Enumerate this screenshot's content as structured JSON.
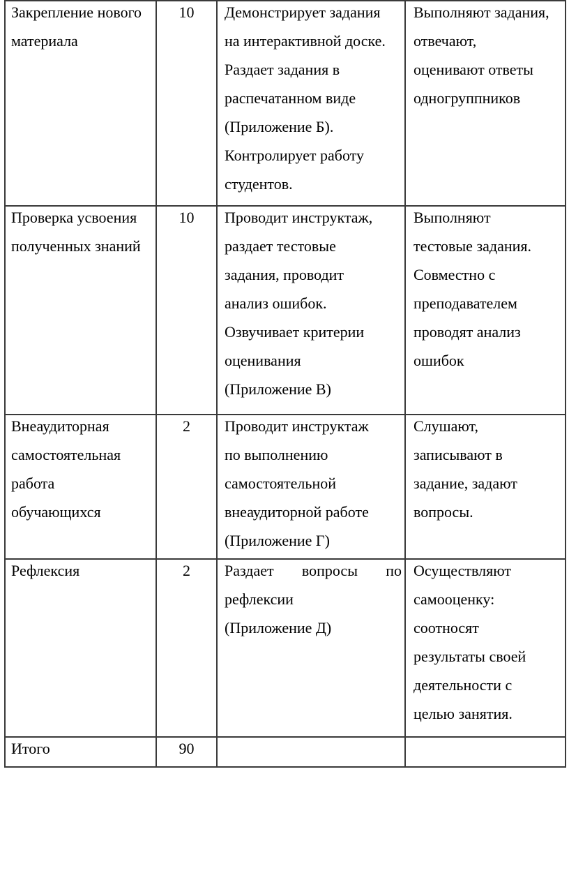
{
  "colors": {
    "border": "#3a3a3a",
    "text": "#000000",
    "background": "#ffffff"
  },
  "table": {
    "rows": [
      {
        "stage": [
          "Закрепление нового",
          "материала"
        ],
        "time": "10",
        "teacher": [
          "Демонстрирует задания",
          "на интерактивной доске.",
          "Раздает задания в",
          "распечатанном виде",
          "(Приложение Б).",
          "Контролирует работу",
          "студентов."
        ],
        "students": [
          "Выполняют задания,",
          "отвечают,",
          "оценивают ответы",
          "одногруппников"
        ]
      },
      {
        "stage": [
          "Проверка усвоения",
          "полученных знаний"
        ],
        "time": "10",
        "teacher": [
          "Проводит инструктаж,",
          "раздает тестовые",
          "задания, проводит",
          "анализ ошибок.",
          "Озвучивает критерии",
          "оценивания",
          "(Приложение В)"
        ],
        "students": [
          "Выполняют",
          "тестовые задания.",
          "Совместно с",
          "преподавателем",
          "проводят анализ",
          "ошибок"
        ]
      },
      {
        "stage": [
          "Внеаудиторная",
          "самостоятельная",
          "работа",
          "обучающихся"
        ],
        "time": "2",
        "teacher": [
          "Проводит инструктаж",
          "по выполнению",
          "самостоятельной",
          "внеаудиторной работе",
          "(Приложение Г)"
        ],
        "students": [
          "Слушают,",
          "записывают в",
          "задание, задают",
          "вопросы."
        ]
      },
      {
        "stage": [
          "Рефлексия"
        ],
        "time": "2",
        "teacher": [
          "Раздает вопросы по",
          "рефлексии",
          "(Приложение Д)"
        ],
        "students": [
          "Осуществляют",
          "самооценку:",
          "соотносят",
          "результаты своей",
          "деятельности с",
          "целью занятия."
        ]
      },
      {
        "stage": [
          "Итого"
        ],
        "time": "90",
        "teacher": [],
        "students": []
      }
    ]
  }
}
